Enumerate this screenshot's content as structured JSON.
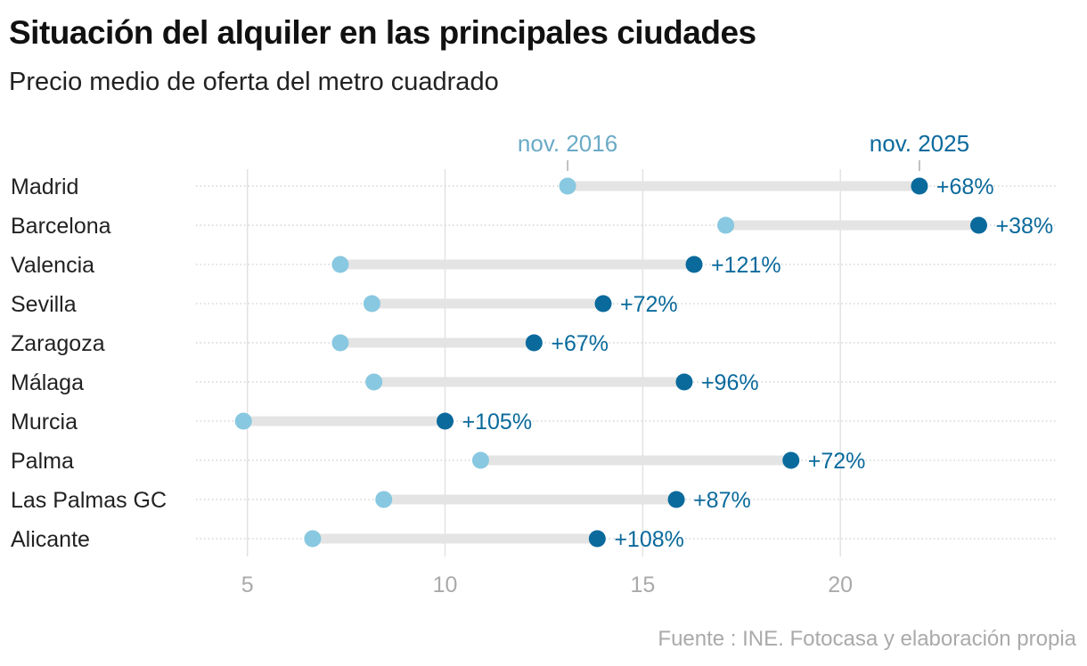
{
  "title": "Situación del alquiler en las principales ciudades",
  "subtitle": "Precio medio de oferta del metro cuadrado",
  "source": "Fuente : INE. Fotocasa y elaboración propia",
  "chart_data": {
    "type": "dumbbell",
    "categories": [
      "Madrid",
      "Barcelona",
      "Valencia",
      "Sevilla",
      "Zaragoza",
      "Málaga",
      "Murcia",
      "Palma",
      "Las Palmas GC",
      "Alicante"
    ],
    "series": [
      {
        "name": "nov. 2016",
        "color": "#88c8e0",
        "label_color": "#6aaac6",
        "values": [
          13.1,
          17.1,
          7.35,
          8.15,
          7.35,
          8.2,
          4.9,
          10.9,
          8.45,
          6.65
        ]
      },
      {
        "name": "nov. 2025",
        "color": "#0a6a9c",
        "label_color": "#0a6a9c",
        "values": [
          22.0,
          23.5,
          16.3,
          14.0,
          12.25,
          16.05,
          10.0,
          18.75,
          15.85,
          13.85
        ]
      }
    ],
    "change_labels": [
      "+68%",
      "+38%",
      "+121%",
      "+72%",
      "+67%",
      "+96%",
      "+105%",
      "+72%",
      "+87%",
      "+108%"
    ],
    "x_ticks": [
      5,
      10,
      15,
      20
    ],
    "xlim": [
      3.7,
      25.45
    ],
    "grid": true,
    "legend_placement": "top, labels above first row"
  }
}
